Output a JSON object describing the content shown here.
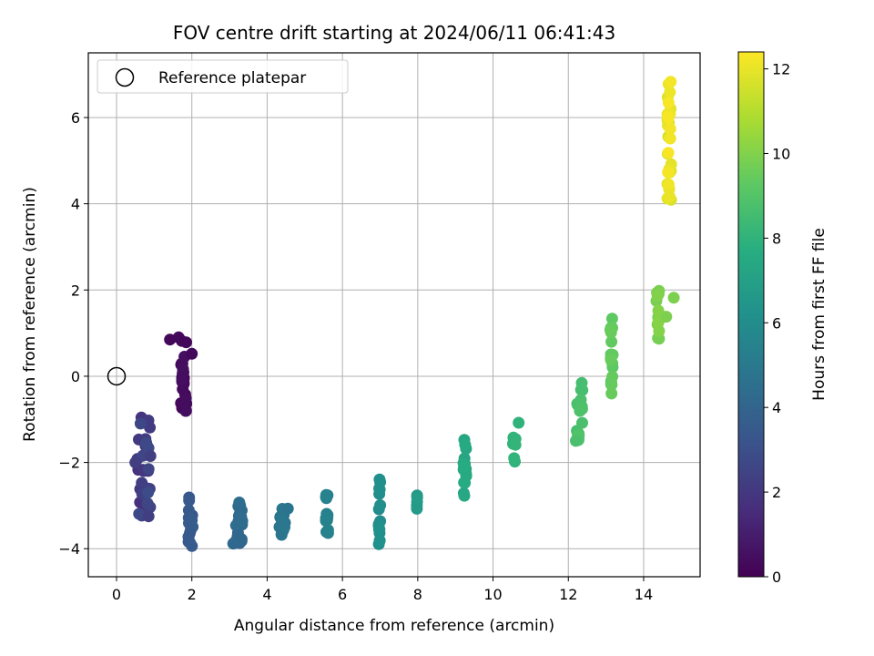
{
  "chart_data": {
    "type": "scatter",
    "title": "FOV centre drift starting at 2024/06/11 06:41:43",
    "xlabel": "Angular distance from reference (arcmin)",
    "ylabel": "Rotation from reference (arcmin)",
    "xlim": [
      -0.75,
      15.5
    ],
    "ylim": [
      -4.65,
      7.5
    ],
    "xticks": [
      0,
      2,
      4,
      6,
      8,
      10,
      12,
      14
    ],
    "yticks": [
      -4,
      -2,
      0,
      2,
      4,
      6
    ],
    "xtick_labels": [
      "0",
      "2",
      "4",
      "6",
      "8",
      "10",
      "12",
      "14"
    ],
    "ytick_labels": [
      "−4",
      "−2",
      "0",
      "2",
      "4",
      "6"
    ],
    "grid": true,
    "legend": {
      "position": "upper-left",
      "entries": [
        {
          "label": "Reference platepar",
          "marker": "open-circle"
        }
      ]
    },
    "reference_point": {
      "x": 0,
      "y": 0
    },
    "colorbar": {
      "label": "Hours from first FF file",
      "range": [
        0,
        12.4
      ],
      "ticks": [
        0,
        2,
        4,
        6,
        8,
        10,
        12
      ],
      "tick_labels": [
        "0",
        "2",
        "4",
        "6",
        "8",
        "10",
        "12"
      ],
      "colormap": "viridis"
    },
    "clusters": [
      {
        "x": 1.78,
        "y_min": -0.95,
        "y_max": 0.9,
        "h_start": 0.0,
        "h_end": 0.5,
        "n": 26,
        "xspread": 0.15,
        "extra": [
          [
            1.42,
            0.85
          ],
          [
            1.65,
            0.9
          ],
          [
            2.0,
            0.52
          ]
        ]
      },
      {
        "x": 0.72,
        "y_min": -3.25,
        "y_max": -0.85,
        "h_start": 1.7,
        "h_end": 2.8,
        "n": 30,
        "xspread": 0.35,
        "extra": [
          [
            0.5,
            -2.0
          ],
          [
            0.9,
            -1.85
          ],
          [
            0.85,
            -3.25
          ]
        ]
      },
      {
        "x": 1.97,
        "y_min": -3.95,
        "y_max": -2.6,
        "h_start": 3.3,
        "h_end": 3.6,
        "n": 16,
        "xspread": 0.12,
        "extra": []
      },
      {
        "x": 3.25,
        "y_min": -3.9,
        "y_max": -2.9,
        "h_start": 4.0,
        "h_end": 4.4,
        "n": 20,
        "xspread": 0.18,
        "extra": [
          [
            3.1,
            -3.88
          ]
        ]
      },
      {
        "x": 4.4,
        "y_min": -3.7,
        "y_max": -3.05,
        "h_start": 4.6,
        "h_end": 4.9,
        "n": 16,
        "xspread": 0.15,
        "extra": [
          [
            4.55,
            -3.07
          ]
        ]
      },
      {
        "x": 5.6,
        "y_min": -3.7,
        "y_max": -2.65,
        "h_start": 5.2,
        "h_end": 5.5,
        "n": 14,
        "xspread": 0.08,
        "extra": []
      },
      {
        "x": 6.98,
        "y_min": -4.05,
        "y_max": -2.25,
        "h_start": 5.9,
        "h_end": 6.2,
        "n": 16,
        "xspread": 0.05,
        "extra": []
      },
      {
        "x": 7.98,
        "y_min": -3.12,
        "y_max": -2.75,
        "h_start": 6.6,
        "h_end": 6.8,
        "n": 5,
        "xspread": 0.02,
        "extra": []
      },
      {
        "x": 9.25,
        "y_min": -2.85,
        "y_max": -1.3,
        "h_start": 7.2,
        "h_end": 7.6,
        "n": 16,
        "xspread": 0.08,
        "extra": []
      },
      {
        "x": 10.58,
        "y_min": -1.98,
        "y_max": -1.08,
        "h_start": 7.9,
        "h_end": 8.1,
        "n": 8,
        "xspread": 0.1,
        "extra": [
          [
            10.68,
            -1.08
          ]
        ]
      },
      {
        "x": 12.3,
        "y_min": -1.5,
        "y_max": -0.1,
        "h_start": 8.6,
        "h_end": 8.9,
        "n": 18,
        "xspread": 0.15,
        "extra": [
          [
            12.2,
            -1.5
          ]
        ]
      },
      {
        "x": 13.15,
        "y_min": -0.4,
        "y_max": 1.55,
        "h_start": 9.2,
        "h_end": 9.5,
        "n": 20,
        "xspread": 0.08,
        "extra": []
      },
      {
        "x": 14.38,
        "y_min": 0.85,
        "y_max": 2.02,
        "h_start": 9.7,
        "h_end": 10.1,
        "n": 14,
        "xspread": 0.1,
        "extra": [
          [
            14.8,
            1.82
          ],
          [
            14.6,
            1.38
          ]
        ]
      },
      {
        "x": 14.68,
        "y_min": 4.08,
        "y_max": 6.92,
        "h_start": 11.6,
        "h_end": 12.3,
        "n": 32,
        "xspread": 0.1,
        "extra": []
      }
    ]
  }
}
